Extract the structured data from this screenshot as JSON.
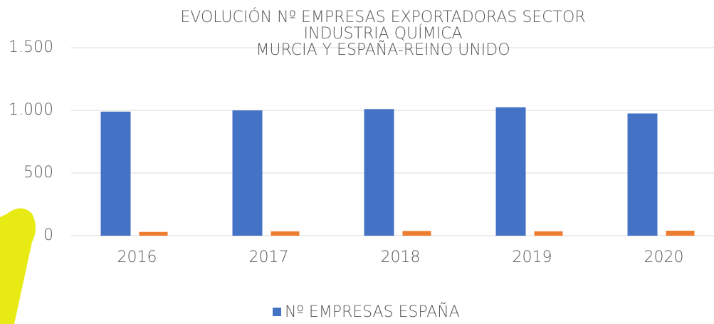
{
  "chart_data": {
    "type": "bar",
    "title": [
      "EVOLUCIÓN Nº EMPRESAS EXPORTADORAS SECTOR",
      "INDUSTRIA QUÍMICA",
      "MURCIA Y ESPAÑA-REINO UNIDO"
    ],
    "categories": [
      "2016",
      "2017",
      "2018",
      "2019",
      "2020"
    ],
    "series": [
      {
        "name": "Nº EMPRESAS ESPAÑA",
        "color": "#4472c4",
        "values": [
          990,
          1000,
          1010,
          1025,
          975
        ]
      },
      {
        "color": "#ed7d31",
        "values": [
          30,
          35,
          38,
          35,
          40
        ]
      }
    ],
    "ylim": [
      0,
      1500
    ],
    "yticks": [
      0,
      500,
      {
        "value": 1000,
        "label": "1.000"
      },
      {
        "value": 1500,
        "label": "1.500"
      }
    ],
    "grid": true,
    "legend": "bottom"
  }
}
